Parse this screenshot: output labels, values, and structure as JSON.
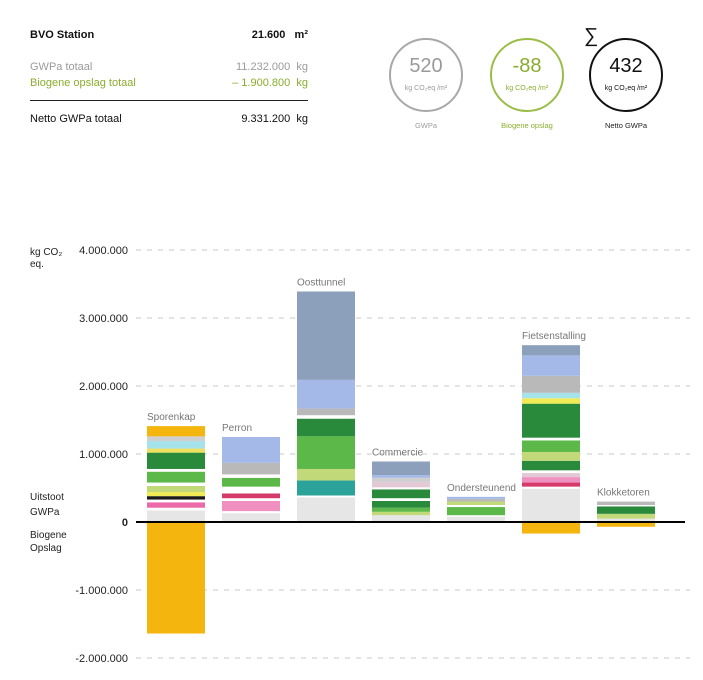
{
  "summary": {
    "station_label": "BVO Station",
    "station_area": "21.600",
    "station_area_unit": "m²",
    "gwpa_label": "GWPa totaal",
    "gwpa_value": "11.232.000",
    "gwpa_unit": "kg",
    "bio_label": "Biogene opslag totaal",
    "bio_value": "– 1.900.800",
    "bio_unit": "kg",
    "net_label": "Netto GWPa totaal",
    "net_value": "9.331.200",
    "net_unit": "kg"
  },
  "indicators": [
    {
      "value": "520",
      "unit": "kg CO₂eq /m²",
      "caption": "GWPa",
      "color": "#a8a8a8"
    },
    {
      "value": "-88",
      "unit": "kg CO₂eq /m²",
      "caption": "Biogene opslag",
      "color": "#9bbd48"
    },
    {
      "value": "432",
      "unit": "kg CO₂eq /m²",
      "caption": "Netto GWPa",
      "color": "#111111",
      "symbol": "∑"
    }
  ],
  "chart_data": {
    "type": "bar",
    "stacked": true,
    "ylabel": "kg CO₂ eq.",
    "ylim": [
      -2000000,
      4000000
    ],
    "ticks": [
      {
        "value": 4000000,
        "label": "4.000.000"
      },
      {
        "value": 3000000,
        "label": "3.000.000"
      },
      {
        "value": 2000000,
        "label": "2.000.000"
      },
      {
        "value": 1000000,
        "label": "1.000.000"
      },
      {
        "value": 0,
        "label": "0"
      },
      {
        "value": -1000000,
        "label": "-1.000.000"
      },
      {
        "value": -2000000,
        "label": "-2.000.000"
      }
    ],
    "upper_zone_label": [
      "Uitstoot",
      "GWPa"
    ],
    "lower_zone_label": [
      "Biogene",
      "Opslag"
    ],
    "grid": "dashed",
    "categories": [
      {
        "name": "Sporenkap",
        "negative": {
          "value": -1640000,
          "color": "#f5b50f"
        },
        "segments": [
          {
            "value": 170000,
            "color": "#e6e6e6"
          },
          {
            "value": 40000,
            "color": "#ffffff"
          },
          {
            "value": 80000,
            "color": "#ec6aa8"
          },
          {
            "value": 40000,
            "color": "#ffffff"
          },
          {
            "value": 50000,
            "color": "#1a1a1a"
          },
          {
            "value": 60000,
            "color": "#f2ea55"
          },
          {
            "value": 90000,
            "color": "#c2d97a"
          },
          {
            "value": 50000,
            "color": "#ffffff"
          },
          {
            "value": 160000,
            "color": "#5cb848"
          },
          {
            "value": 40000,
            "color": "#ffffff"
          },
          {
            "value": 240000,
            "color": "#2a8a3c"
          },
          {
            "value": 60000,
            "color": "#f0e060"
          },
          {
            "value": 110000,
            "color": "#a5e2ea"
          },
          {
            "value": 70000,
            "color": "#cfcfcf"
          },
          {
            "value": 150000,
            "color": "#f5b50f"
          }
        ]
      },
      {
        "name": "Perron",
        "segments": [
          {
            "value": 130000,
            "color": "#e6e6e6"
          },
          {
            "value": 30000,
            "color": "#ffffff"
          },
          {
            "value": 150000,
            "color": "#f090c0"
          },
          {
            "value": 40000,
            "color": "#ffffff"
          },
          {
            "value": 70000,
            "color": "#d63a6a"
          },
          {
            "value": 100000,
            "color": "#ffffff"
          },
          {
            "value": 130000,
            "color": "#5cb848"
          },
          {
            "value": 50000,
            "color": "#ffffff"
          },
          {
            "value": 170000,
            "color": "#b9b9b9"
          },
          {
            "value": 380000,
            "color": "#a5b9e8"
          }
        ]
      },
      {
        "name": "Oosttunnel",
        "segments": [
          {
            "value": 360000,
            "color": "#e6e6e6"
          },
          {
            "value": 30000,
            "color": "#ffffff"
          },
          {
            "value": 220000,
            "color": "#2ba39a"
          },
          {
            "value": 170000,
            "color": "#c2d97a"
          },
          {
            "value": 480000,
            "color": "#5cb848"
          },
          {
            "value": 260000,
            "color": "#2a8a3c"
          },
          {
            "value": 50000,
            "color": "#ffffff"
          },
          {
            "value": 100000,
            "color": "#b9b9b9"
          },
          {
            "value": 420000,
            "color": "#a5b9e8"
          },
          {
            "value": 1300000,
            "color": "#8da0bb"
          }
        ]
      },
      {
        "name": "Commercie",
        "segments": [
          {
            "value": 100000,
            "color": "#e6e6e6"
          },
          {
            "value": 50000,
            "color": "#c2d97a"
          },
          {
            "value": 60000,
            "color": "#5cb848"
          },
          {
            "value": 100000,
            "color": "#2a8a3c"
          },
          {
            "value": 40000,
            "color": "#ffffff"
          },
          {
            "value": 130000,
            "color": "#2a8a3c"
          },
          {
            "value": 30000,
            "color": "#ffffff"
          },
          {
            "value": 80000,
            "color": "#e3c8d5"
          },
          {
            "value": 60000,
            "color": "#cfcfcf"
          },
          {
            "value": 40000,
            "color": "#a5b9e8"
          },
          {
            "value": 200000,
            "color": "#8da0bb"
          }
        ]
      },
      {
        "name": "Ondersteunend",
        "segments": [
          {
            "value": 80000,
            "color": "#e6e6e6"
          },
          {
            "value": 20000,
            "color": "#ffffff"
          },
          {
            "value": 120000,
            "color": "#5cb848"
          },
          {
            "value": 30000,
            "color": "#ffffff"
          },
          {
            "value": 50000,
            "color": "#c2d97a"
          },
          {
            "value": 40000,
            "color": "#b9b9b9"
          },
          {
            "value": 30000,
            "color": "#a5b9e8"
          }
        ]
      },
      {
        "name": "Fietsenstalling",
        "negative": {
          "value": -170000,
          "color": "#f5b50f"
        },
        "segments": [
          {
            "value": 490000,
            "color": "#e6e6e6"
          },
          {
            "value": 30000,
            "color": "#ffffff"
          },
          {
            "value": 60000,
            "color": "#d63a6a"
          },
          {
            "value": 80000,
            "color": "#f090c0"
          },
          {
            "value": 60000,
            "color": "#e3c8d5"
          },
          {
            "value": 40000,
            "color": "#ffffff"
          },
          {
            "value": 140000,
            "color": "#2a8a3c"
          },
          {
            "value": 130000,
            "color": "#c2d97a"
          },
          {
            "value": 170000,
            "color": "#5cb848"
          },
          {
            "value": 40000,
            "color": "#ffffff"
          },
          {
            "value": 500000,
            "color": "#2a8a3c"
          },
          {
            "value": 80000,
            "color": "#f2ea55"
          },
          {
            "value": 80000,
            "color": "#a5e2ea"
          },
          {
            "value": 250000,
            "color": "#b9b9b9"
          },
          {
            "value": 300000,
            "color": "#a5b9e8"
          },
          {
            "value": 150000,
            "color": "#8da0bb"
          }
        ]
      },
      {
        "name": "Klokketoren",
        "negative": {
          "value": -70000,
          "color": "#f5b50f"
        },
        "segments": [
          {
            "value": 50000,
            "color": "#e6e6e6"
          },
          {
            "value": 70000,
            "color": "#c2d97a"
          },
          {
            "value": 110000,
            "color": "#2a8a3c"
          },
          {
            "value": 20000,
            "color": "#ffffff"
          },
          {
            "value": 50000,
            "color": "#b9b9b9"
          }
        ]
      }
    ]
  }
}
